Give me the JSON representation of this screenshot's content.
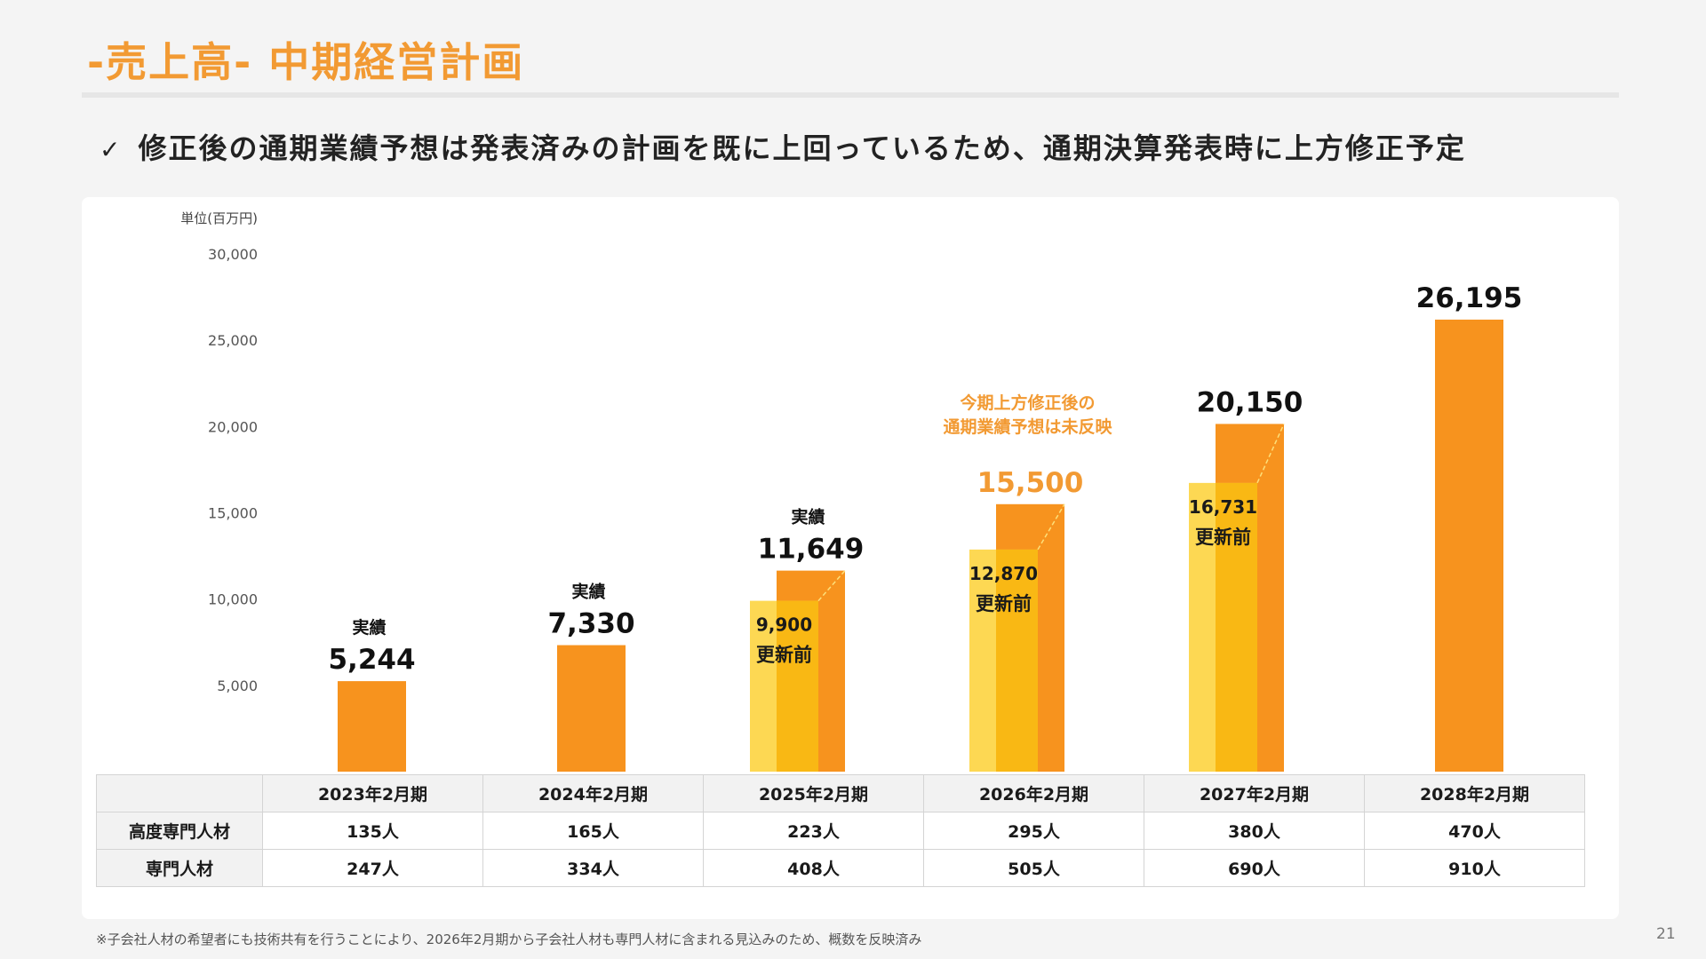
{
  "title": "-売上高- 中期経営計画",
  "subtitle": {
    "check_icon": "✓",
    "text": "修正後の通期業績予想は発表済みの計画を既に上回っているため、通期決算発表時に上方修正予定"
  },
  "chart_data": {
    "type": "bar",
    "unit_label": "単位(百万円)",
    "ylim": [
      0,
      30000
    ],
    "yticks": [
      "5,000",
      "10,000",
      "15,000",
      "20,000",
      "25,000",
      "30,000"
    ],
    "ytick_values": [
      5000,
      10000,
      15000,
      20000,
      25000,
      30000
    ],
    "categories": [
      "2023年2月期",
      "2024年2月期",
      "2025年2月期",
      "2026年2月期",
      "2027年2月期",
      "2028年2月期"
    ],
    "series": [
      {
        "name": "更新前",
        "values": [
          null,
          null,
          9900,
          12870,
          16731,
          null
        ],
        "labels": [
          "",
          "",
          "9,900",
          "12,870",
          "16,731",
          ""
        ]
      },
      {
        "values": [
          5244,
          7330,
          11649,
          15500,
          20150,
          26195
        ],
        "labels": [
          "5,244",
          "7,330",
          "11,649",
          "15,500",
          "20,150",
          "26,195"
        ]
      }
    ],
    "actual_tags": [
      "実績",
      "実績",
      "実績",
      "",
      "",
      ""
    ],
    "annotation": [
      "今期上方修正後の",
      "通期業績予想は未反映"
    ],
    "colors": {
      "current": "#f7931e",
      "previous": "#fdd853",
      "overlap": "#f9b814",
      "accent_text": "#f29a33"
    }
  },
  "table": {
    "rows": [
      {
        "label": "高度専門人材",
        "values": [
          "135人",
          "165人",
          "223人",
          "295人",
          "380人",
          "470人"
        ]
      },
      {
        "label": "専門人材",
        "values": [
          "247人",
          "334人",
          "408人",
          "505人",
          "690人",
          "910人"
        ]
      }
    ]
  },
  "footnote": "※子会社人材の希望者にも技術共有を行うことにより、2026年2月期から子会社人材も専門人材に含まれる見込みのため、概数を反映済み",
  "page_number": "21"
}
